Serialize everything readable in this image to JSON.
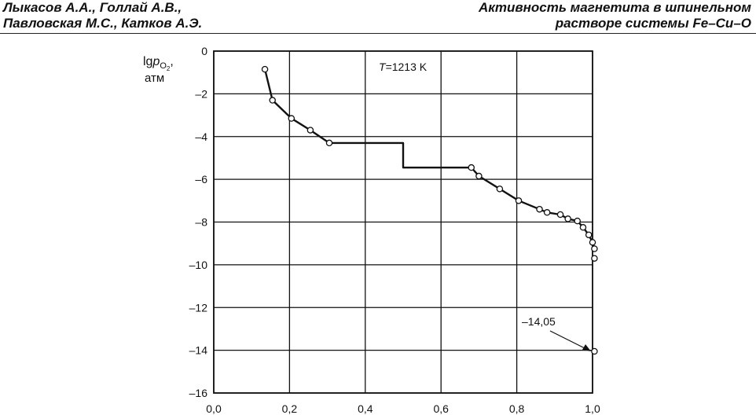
{
  "header": {
    "left_line1": "Лыкасов А.А., Голлай А.В.,",
    "left_line2": "Павловская М.С., Катков А.Э.",
    "right_line1": "Активность магнетита в шпинельном",
    "right_line2": "растворе системы Fe–Cu–O"
  },
  "chart_data": {
    "type": "line",
    "ylabel_main": "lg",
    "ylabel_p": "p",
    "ylabel_sub": "O",
    "ylabel_subsub": "2",
    "ylabel_comma": ",",
    "ylabel_unit": "атм",
    "annotation_T_italic": "T",
    "annotation_T_rest": "=1213 K",
    "annotation_value": "–14,05",
    "xlim": [
      0,
      1
    ],
    "ylim": [
      -16,
      0
    ],
    "x_ticks": [
      0,
      0.2,
      0.4,
      0.6,
      0.8,
      1.0
    ],
    "x_tick_labels": [
      "0,0",
      "0,2",
      "0,4",
      "0,6",
      "0,8",
      "1,0"
    ],
    "y_ticks": [
      0,
      -2,
      -4,
      -6,
      -8,
      -10,
      -12,
      -14,
      -16
    ],
    "y_tick_labels": [
      "0",
      "–2",
      "–4",
      "–6",
      "–8",
      "–10",
      "–12",
      "–14",
      "–16"
    ],
    "grid": true,
    "points": [
      {
        "x": 0.135,
        "y": -0.85
      },
      {
        "x": 0.155,
        "y": -2.3
      },
      {
        "x": 0.205,
        "y": -3.15
      },
      {
        "x": 0.255,
        "y": -3.7
      },
      {
        "x": 0.305,
        "y": -4.3
      },
      {
        "x": 0.68,
        "y": -5.45
      },
      {
        "x": 0.7,
        "y": -5.85
      },
      {
        "x": 0.755,
        "y": -6.45
      },
      {
        "x": 0.805,
        "y": -7.0
      },
      {
        "x": 0.86,
        "y": -7.4
      },
      {
        "x": 0.88,
        "y": -7.55
      },
      {
        "x": 0.915,
        "y": -7.65
      },
      {
        "x": 0.935,
        "y": -7.85
      },
      {
        "x": 0.96,
        "y": -7.95
      },
      {
        "x": 0.975,
        "y": -8.25
      },
      {
        "x": 0.99,
        "y": -8.6
      },
      {
        "x": 1.0,
        "y": -8.95
      },
      {
        "x": 1.005,
        "y": -9.25
      },
      {
        "x": 1.005,
        "y": -9.7
      },
      {
        "x": 1.005,
        "y": -14.05
      }
    ],
    "curve": [
      [
        0.135,
        -0.85
      ],
      [
        0.155,
        -2.3
      ],
      [
        0.205,
        -3.15
      ],
      [
        0.255,
        -3.7
      ],
      [
        0.305,
        -4.3
      ],
      [
        0.5,
        -4.3
      ],
      [
        0.5,
        -5.45
      ],
      [
        0.68,
        -5.45
      ],
      [
        0.7,
        -5.85
      ],
      [
        0.755,
        -6.45
      ],
      [
        0.805,
        -7.0
      ],
      [
        0.86,
        -7.4
      ],
      [
        0.88,
        -7.55
      ],
      [
        0.915,
        -7.65
      ],
      [
        0.935,
        -7.85
      ],
      [
        0.96,
        -7.95
      ],
      [
        0.975,
        -8.25
      ],
      [
        0.99,
        -8.6
      ],
      [
        1.0,
        -8.95
      ],
      [
        1.005,
        -9.25
      ]
    ]
  }
}
